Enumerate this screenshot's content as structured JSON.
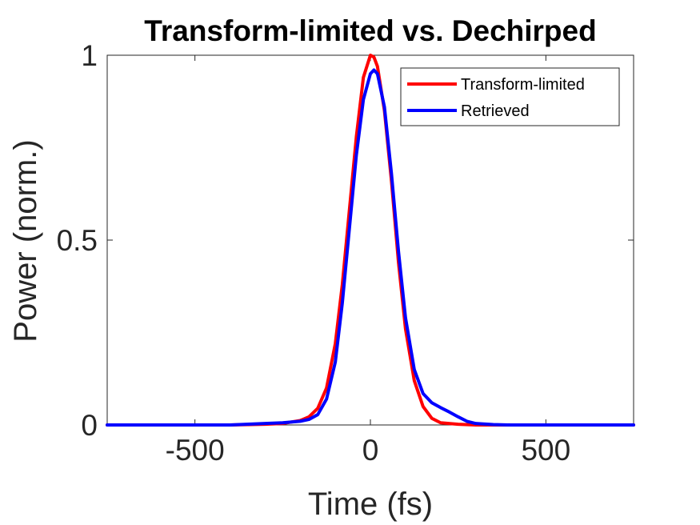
{
  "chart_data": {
    "type": "line",
    "title": "Transform-limited vs. Dechirped",
    "xlabel": "Time (fs)",
    "ylabel": "Power (norm.)",
    "xlim": [
      -750,
      750
    ],
    "ylim": [
      0,
      1
    ],
    "xticks": [
      -500,
      0,
      500
    ],
    "xtick_labels": [
      "-500",
      "0",
      "500"
    ],
    "yticks": [
      0,
      0.5,
      1
    ],
    "ytick_labels": [
      "0",
      "0.5",
      "1"
    ],
    "grid": false,
    "legend_position": "top-right",
    "series": [
      {
        "name": "Transform-limited",
        "color": "#ff0000",
        "x": [
          -750,
          -400,
          -300,
          -250,
          -200,
          -175,
          -150,
          -125,
          -100,
          -80,
          -60,
          -40,
          -20,
          0,
          10,
          20,
          40,
          60,
          80,
          100,
          125,
          150,
          175,
          200,
          250,
          300,
          400,
          750
        ],
        "y": [
          0,
          0.0,
          0.002,
          0.004,
          0.012,
          0.022,
          0.045,
          0.1,
          0.22,
          0.38,
          0.58,
          0.78,
          0.94,
          1.0,
          0.995,
          0.97,
          0.85,
          0.66,
          0.44,
          0.26,
          0.12,
          0.05,
          0.018,
          0.006,
          0.002,
          0.0,
          0.0,
          0
        ]
      },
      {
        "name": "Retrieved",
        "color": "#0000ff",
        "x": [
          -750,
          -400,
          -300,
          -250,
          -200,
          -175,
          -150,
          -125,
          -100,
          -80,
          -60,
          -40,
          -20,
          0,
          10,
          20,
          40,
          60,
          80,
          100,
          125,
          150,
          175,
          200,
          225,
          250,
          275,
          300,
          350,
          400,
          750
        ],
        "y": [
          0,
          0.0,
          0.004,
          0.006,
          0.01,
          0.015,
          0.028,
          0.07,
          0.17,
          0.33,
          0.53,
          0.73,
          0.88,
          0.95,
          0.96,
          0.95,
          0.86,
          0.68,
          0.47,
          0.29,
          0.15,
          0.085,
          0.06,
          0.047,
          0.035,
          0.022,
          0.01,
          0.004,
          0.001,
          0.0,
          0
        ]
      }
    ]
  }
}
